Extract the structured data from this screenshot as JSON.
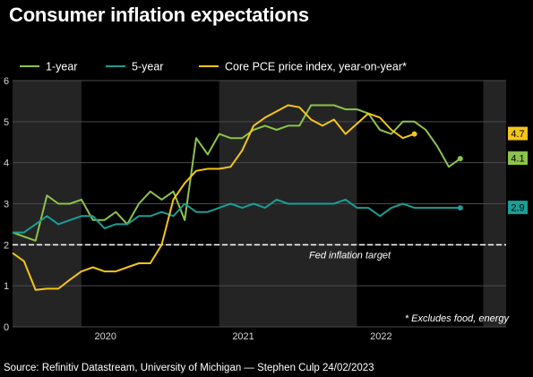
{
  "title": "Consumer inflation expectations",
  "source": "Source: Refinitiv Datastream, University of Michigan — Stephen Culp 24/02/2023",
  "chart_data": {
    "type": "line",
    "title": "Consumer inflation expectations",
    "xlabel": "",
    "ylabel": "",
    "ylim": [
      0,
      6
    ],
    "yticks": [
      0,
      1,
      2,
      3,
      4,
      5,
      6
    ],
    "x_ticks": [
      {
        "label": "2020",
        "x": 2020.0
      },
      {
        "label": "2021",
        "x": 2021.0
      },
      {
        "label": "2022",
        "x": 2022.0
      }
    ],
    "xlim": [
      2019.5,
      2023.083
    ],
    "grid": true,
    "legend_position": "top",
    "shading": [
      [
        2019.5,
        2020.0
      ],
      [
        2021.0,
        2022.0
      ],
      [
        2022.917,
        2023.083
      ]
    ],
    "reference_line": {
      "y": 2.0,
      "label": "Fed inflation target",
      "color": "#ffffff",
      "dashed": true
    },
    "footnote": "* Excludes food, energy",
    "series": [
      {
        "name": "1-year",
        "color": "#8cc34a",
        "end_label": "4.1",
        "x": [
          2019.5,
          2019.583,
          2019.667,
          2019.75,
          2019.833,
          2019.917,
          2020.0,
          2020.083,
          2020.167,
          2020.25,
          2020.333,
          2020.417,
          2020.5,
          2020.583,
          2020.667,
          2020.75,
          2020.833,
          2020.917,
          2021.0,
          2021.083,
          2021.167,
          2021.25,
          2021.333,
          2021.417,
          2021.5,
          2021.583,
          2021.667,
          2021.75,
          2021.833,
          2021.917,
          2022.0,
          2022.083,
          2022.167,
          2022.25,
          2022.333,
          2022.417,
          2022.5,
          2022.583,
          2022.667,
          2022.75,
          2022.833,
          2022.917
        ],
        "values": [
          2.3,
          2.2,
          2.1,
          3.2,
          3.0,
          3.0,
          3.1,
          2.6,
          2.6,
          2.8,
          2.5,
          3.0,
          3.3,
          3.1,
          3.3,
          2.6,
          4.6,
          4.2,
          4.7,
          4.6,
          4.6,
          4.8,
          4.9,
          4.8,
          4.9,
          4.9,
          5.4,
          5.4,
          5.4,
          5.3,
          5.3,
          5.2,
          4.8,
          4.7,
          5.0,
          5.0,
          4.8,
          4.4,
          3.9,
          4.1,
          null,
          null
        ]
      },
      {
        "name": "5-year",
        "color": "#1a9e96",
        "end_label": "2.9",
        "x": [
          2019.5,
          2019.583,
          2019.667,
          2019.75,
          2019.833,
          2019.917,
          2020.0,
          2020.083,
          2020.167,
          2020.25,
          2020.333,
          2020.417,
          2020.5,
          2020.583,
          2020.667,
          2020.75,
          2020.833,
          2020.917,
          2021.0,
          2021.083,
          2021.167,
          2021.25,
          2021.333,
          2021.417,
          2021.5,
          2021.583,
          2021.667,
          2021.75,
          2021.833,
          2021.917,
          2022.0,
          2022.083,
          2022.167,
          2022.25,
          2022.333,
          2022.417,
          2022.5,
          2022.583,
          2022.667,
          2022.75
        ],
        "values": [
          2.3,
          2.3,
          2.5,
          2.7,
          2.5,
          2.6,
          2.7,
          2.7,
          2.4,
          2.5,
          2.5,
          2.7,
          2.7,
          2.8,
          2.7,
          3.0,
          2.8,
          2.8,
          2.9,
          3.0,
          2.9,
          3.0,
          2.9,
          3.1,
          3.0,
          3.0,
          3.0,
          3.0,
          3.0,
          3.1,
          2.9,
          2.9,
          2.7,
          2.9,
          3.0,
          2.9,
          2.9,
          2.9,
          2.9,
          2.9
        ]
      },
      {
        "name": "Core PCE price index, year-on-year*",
        "color": "#f5c518",
        "end_label": "4.7",
        "x": [
          2019.5,
          2019.583,
          2019.667,
          2019.75,
          2019.833,
          2019.917,
          2020.0,
          2020.083,
          2020.167,
          2020.25,
          2020.333,
          2020.417,
          2020.5,
          2020.583,
          2020.667,
          2020.75,
          2020.833,
          2020.917,
          2021.0,
          2021.083,
          2021.167,
          2021.25,
          2021.333,
          2021.417,
          2021.5,
          2021.583,
          2021.667,
          2021.75,
          2021.833,
          2021.917,
          2022.0,
          2022.083,
          2022.167,
          2022.25,
          2022.333,
          2022.417,
          2022.5,
          2022.583,
          2022.667,
          2022.75
        ],
        "values": [
          1.8,
          1.6,
          0.9,
          0.93,
          0.93,
          1.15,
          1.35,
          1.45,
          1.35,
          1.35,
          1.45,
          1.55,
          1.55,
          2.0,
          3.1,
          3.5,
          3.8,
          3.85,
          3.85,
          3.9,
          4.3,
          4.9,
          5.1,
          5.25,
          5.4,
          5.35,
          5.05,
          4.9,
          5.05,
          4.7,
          4.95,
          5.2,
          5.1,
          4.8,
          4.6,
          4.7,
          null,
          null,
          null,
          null
        ]
      }
    ]
  }
}
